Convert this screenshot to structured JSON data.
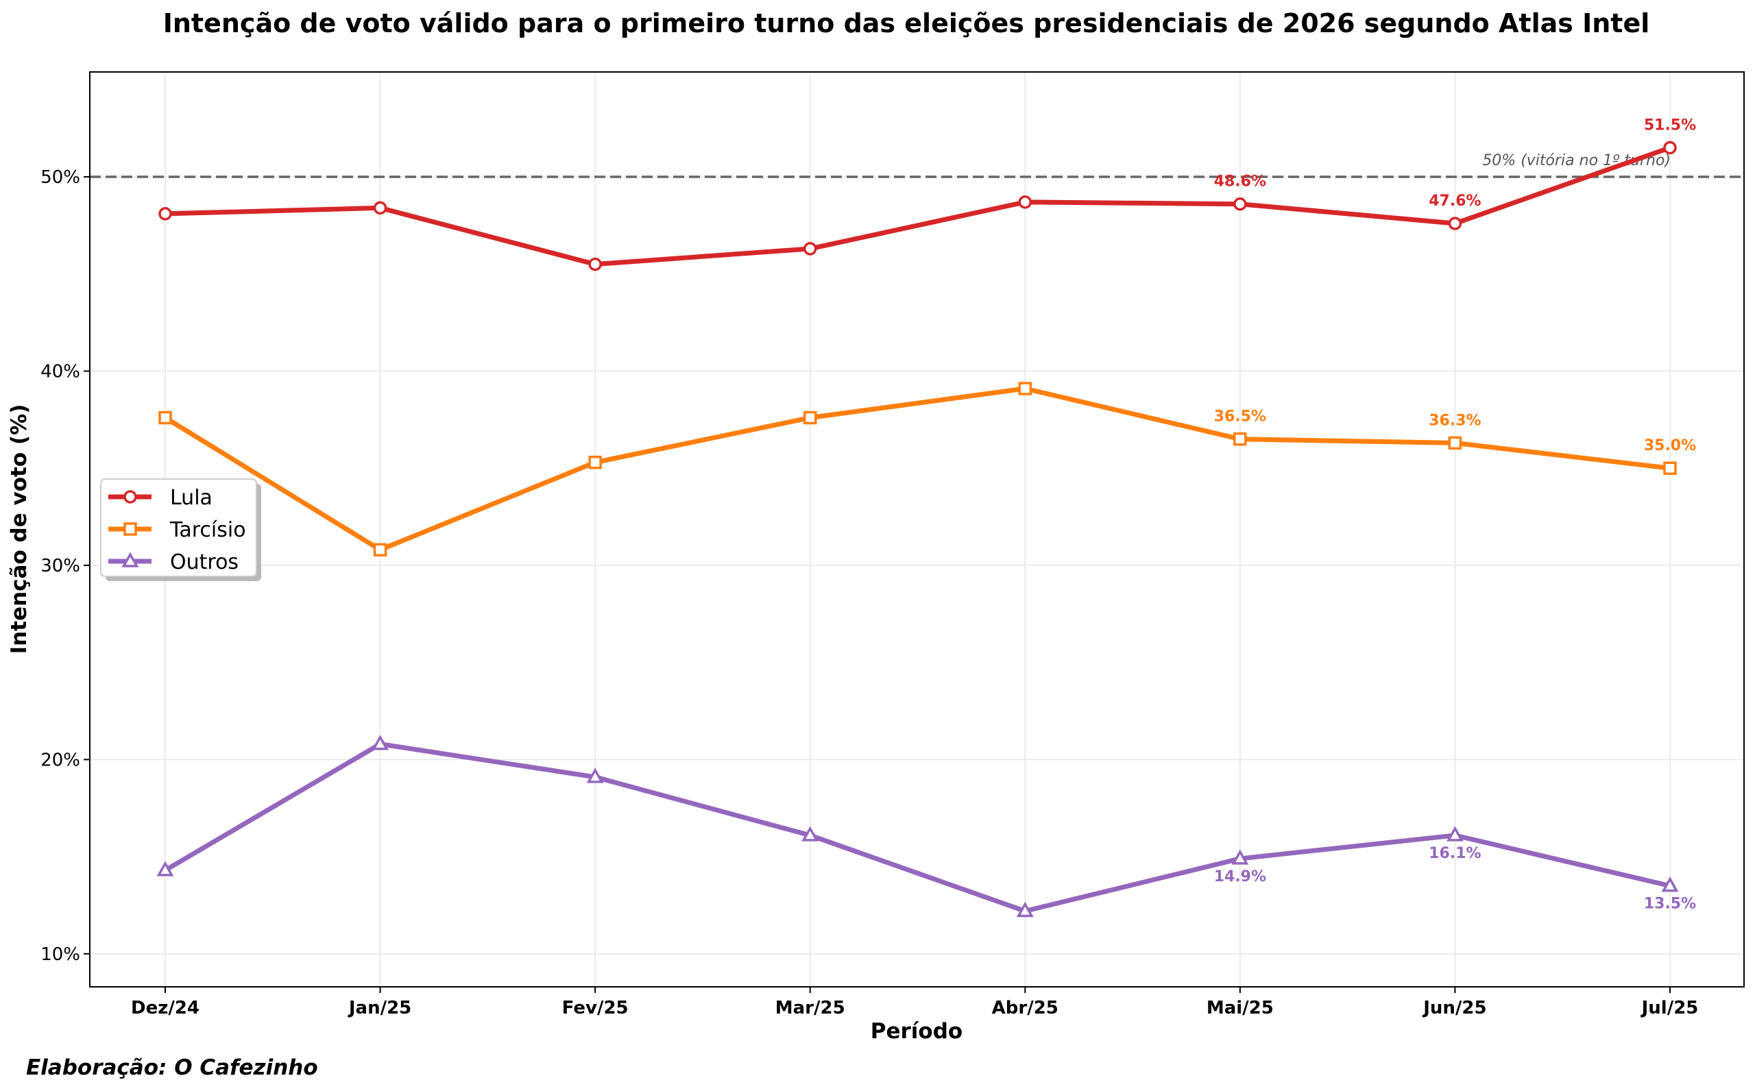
{
  "chart_data": {
    "type": "line",
    "title": "Intenção de voto válido para o primeiro turno das eleições presidenciais de 2026 segundo Atlas Intel",
    "xlabel": "Período",
    "ylabel": "Intenção de voto (%)",
    "categories": [
      "Dez/24",
      "Jan/25",
      "Fev/25",
      "Mar/25",
      "Abr/25",
      "Mai/25",
      "Jun/25",
      "Jul/25"
    ],
    "ylim": [
      8.3,
      55.4
    ],
    "yticks": [
      10,
      20,
      30,
      40,
      50
    ],
    "ytick_labels": [
      "10%",
      "20%",
      "30%",
      "40%",
      "50%"
    ],
    "grid": true,
    "legend_position": "center-left",
    "series": [
      {
        "name": "Lula",
        "color": "#d62728",
        "marker": "circle",
        "values": [
          48.1,
          48.4,
          45.5,
          46.3,
          48.7,
          48.6,
          47.6,
          51.5
        ],
        "labels": [
          null,
          null,
          null,
          null,
          null,
          "48.6%",
          "47.6%",
          "51.5%"
        ],
        "label_position": "above"
      },
      {
        "name": "Tarcísio",
        "color": "#ff7f0e",
        "marker": "square",
        "values": [
          37.6,
          30.8,
          35.3,
          37.6,
          39.1,
          36.5,
          36.3,
          35.0
        ],
        "labels": [
          null,
          null,
          null,
          null,
          null,
          "36.5%",
          "36.3%",
          "35.0%"
        ],
        "label_position": "above"
      },
      {
        "name": "Outros",
        "color": "#9467bd",
        "marker": "triangle",
        "values": [
          14.3,
          20.8,
          19.1,
          16.1,
          12.2,
          14.9,
          16.1,
          13.5
        ],
        "labels": [
          null,
          null,
          null,
          null,
          null,
          "14.9%",
          "16.1%",
          "13.5%"
        ],
        "label_position": "below"
      }
    ],
    "reference_line": {
      "value": 50,
      "label": "50% (vitória no 1º turno)",
      "color": "#666666",
      "style": "dashed"
    },
    "credit": "Elaboração: O Cafezinho"
  }
}
